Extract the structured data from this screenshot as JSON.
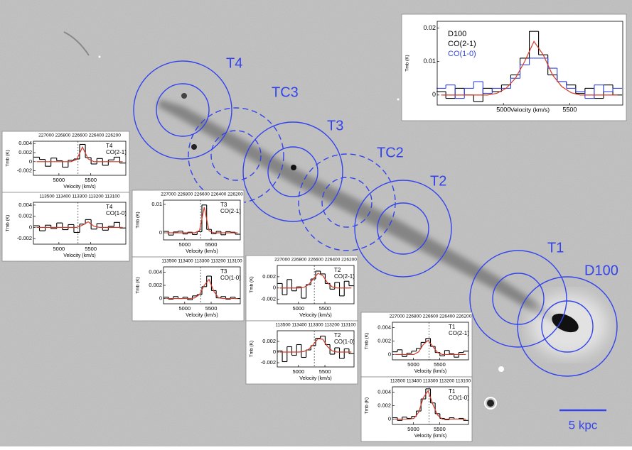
{
  "image": {
    "labels": [
      "T4",
      "TC3",
      "T3",
      "TC2",
      "T2",
      "T1",
      "D100"
    ],
    "scale_bar": "5 kpc"
  },
  "chart_data": [
    {
      "type": "step",
      "title": "D100",
      "x_label": "Velocity (km/s)",
      "y_label": "Tmb (K)",
      "xlim": [
        4500,
        5900
      ],
      "ylim": [
        -0.003,
        0.022
      ],
      "xticks": [
        5000,
        5500
      ],
      "yticks": [
        0,
        0.01,
        0.02
      ],
      "x": [
        4530,
        4600,
        4670,
        4740,
        4810,
        4880,
        4950,
        5020,
        5090,
        5160,
        5230,
        5300,
        5370,
        5440,
        5510,
        5580,
        5650,
        5720,
        5790,
        5860
      ],
      "series": [
        {
          "name": "CO(2-1)",
          "color": "#000000",
          "values": [
            0.001,
            -0.001,
            0.002,
            0,
            -0.002,
            0.002,
            0.001,
            0.003,
            0.006,
            0.011,
            0.019,
            0.012,
            0.006,
            0.004,
            0.003,
            0.0005,
            0.002,
            -0.001,
            0.003,
            0
          ]
        },
        {
          "name": "CO(1-0)",
          "color": "#3344dd",
          "values": [
            0.002,
            0.003,
            -0.001,
            0.002,
            0.004,
            0.0005,
            0.002,
            0.002,
            0.005,
            0.009,
            0.011,
            0.011,
            0.008,
            0.004,
            0.002,
            0.001,
            -0.001,
            0.003,
            0.001,
            0.002
          ]
        },
        {
          "color": "#d43a2a",
          "fit": true,
          "values": [
            0,
            0,
            0,
            0,
            0,
            0,
            0.0005,
            0.002,
            0.005,
            0.01,
            0.016,
            0.012,
            0.006,
            0.0025,
            0.0007,
            0,
            0,
            0,
            0,
            0
          ]
        }
      ]
    },
    {
      "type": "step",
      "title": "T4",
      "top_axis": "227000 226800 226600 226400 226200",
      "x_label": "Velocity (km/s)",
      "y_label": "Tmb (K)",
      "xlim": [
        4600,
        6050
      ],
      "ylim": [
        -0.003,
        0.0045
      ],
      "xticks": [
        5000,
        5500
      ],
      "yticks": [
        -0.002,
        0,
        0.002,
        0.004
      ],
      "vline": 5300,
      "x": [
        4650,
        4740,
        4830,
        4920,
        5010,
        5100,
        5190,
        5280,
        5370,
        5460,
        5550,
        5640,
        5730,
        5820,
        5910,
        6000
      ],
      "series": [
        {
          "name": "CO(2-1)",
          "color": "#000000",
          "values": [
            0.001,
            0.0005,
            -0.001,
            0.0008,
            0.0002,
            -0.0012,
            0.0003,
            0.0006,
            0.0038,
            0.0009,
            -0.0005,
            0.0007,
            -0.0008,
            0.0004,
            0.001,
            -0.0003
          ]
        },
        {
          "color": "#d43a2a",
          "fit": true,
          "values": [
            0,
            0,
            0,
            0,
            0,
            0,
            0,
            0.0005,
            0.0032,
            0.0006,
            0,
            0,
            0,
            0,
            0,
            0
          ]
        }
      ]
    },
    {
      "type": "step",
      "title": "T4",
      "top_axis": "113500 113400 113300 113200 113100",
      "x_label": "Velocity (km/s)",
      "y_label": "Tmb (K)",
      "xlim": [
        4600,
        6050
      ],
      "ylim": [
        -0.003,
        0.0045
      ],
      "xticks": [
        5000,
        5500
      ],
      "yticks": [
        -0.002,
        0,
        0.002,
        0.004
      ],
      "vline": 5300,
      "x": [
        4650,
        4740,
        4830,
        4920,
        5010,
        5100,
        5190,
        5280,
        5370,
        5460,
        5550,
        5640,
        5730,
        5820,
        5910,
        6000
      ],
      "series": [
        {
          "name": "CO(1-0)",
          "color": "#000000",
          "values": [
            0.0003,
            -0.0006,
            0.0004,
            -0.0002,
            0.0008,
            -0.0004,
            0.0005,
            -0.0009,
            0.0006,
            0.0014,
            -0.0003,
            0.0007,
            -0.0005,
            0.0002,
            0.0009,
            -0.0001
          ]
        },
        {
          "color": "#d43a2a",
          "fit": true,
          "values": [
            0,
            0,
            0,
            0,
            0,
            0,
            0,
            0,
            0.0004,
            0.001,
            0.0002,
            0,
            0,
            0,
            0,
            0
          ]
        }
      ]
    },
    {
      "type": "step",
      "title": "T3",
      "top_axis": "227000 226800 226600 226400 226200",
      "x_label": "Velocity (km/s)",
      "y_label": "Tmb (K)",
      "xlim": [
        4600,
        6050
      ],
      "ylim": [
        -0.0025,
        0.0115
      ],
      "xticks": [
        5000,
        5500
      ],
      "yticks": [
        0,
        0.01
      ],
      "vline": 5300,
      "x": [
        4650,
        4740,
        4830,
        4920,
        5010,
        5100,
        5190,
        5280,
        5370,
        5460,
        5550,
        5640,
        5730,
        5820,
        5910,
        6000
      ],
      "series": [
        {
          "name": "CO(2-1)",
          "color": "#000000",
          "values": [
            0.0005,
            -0.0008,
            0.0003,
            0.0006,
            -0.0004,
            0.0002,
            -0.0006,
            0.0004,
            0.0098,
            0.0012,
            -0.0003,
            0.0005,
            -0.0007,
            0.0004,
            0.0002,
            -0.0005
          ]
        },
        {
          "color": "#d43a2a",
          "fit": true,
          "values": [
            0,
            0,
            0,
            0,
            0,
            0,
            0,
            0.0008,
            0.009,
            0.0007,
            0,
            0,
            0,
            0,
            0,
            0
          ]
        }
      ]
    },
    {
      "type": "step",
      "title": "T3",
      "top_axis": "113500 113400 113300 113200 113100",
      "x_label": "Velocity (km/s)",
      "y_label": "Tmb (K)",
      "xlim": [
        4600,
        6050
      ],
      "ylim": [
        -0.0008,
        0.0048
      ],
      "xticks": [
        5000,
        5500
      ],
      "yticks": [
        0,
        0.002,
        0.004
      ],
      "vline": 5300,
      "x": [
        4650,
        4740,
        4830,
        4920,
        5010,
        5100,
        5190,
        5280,
        5370,
        5460,
        5550,
        5640,
        5730,
        5820,
        5910,
        6000
      ],
      "series": [
        {
          "name": "CO(1-0)",
          "color": "#000000",
          "values": [
            0.0002,
            -0.0001,
            0.0003,
            0,
            0.0002,
            -0.0002,
            0.0004,
            0.0006,
            0.0018,
            0.0034,
            0.0012,
            0.0001,
            0.0003,
            -0.0001,
            0.0002,
            0
          ]
        },
        {
          "color": "#d43a2a",
          "fit": true,
          "values": [
            0,
            0,
            0,
            0,
            0,
            0,
            0.0001,
            0.0006,
            0.002,
            0.0029,
            0.0011,
            0.0001,
            0,
            0,
            0,
            0
          ]
        }
      ]
    },
    {
      "type": "step",
      "title": "T2",
      "top_axis": "227000 226800 226600 226400 226200",
      "x_label": "Velocity (km/s)",
      "y_label": "Tmb (K)",
      "xlim": [
        4600,
        6050
      ],
      "ylim": [
        -0.0028,
        0.004
      ],
      "xticks": [
        5000,
        5500
      ],
      "yticks": [
        -0.002,
        0,
        0.002
      ],
      "vline": 5300,
      "x": [
        4650,
        4740,
        4830,
        4920,
        5010,
        5100,
        5190,
        5280,
        5370,
        5460,
        5550,
        5640,
        5730,
        5820,
        5910,
        6000
      ],
      "series": [
        {
          "name": "CO(2-1)",
          "color": "#000000",
          "values": [
            0.0008,
            -0.0012,
            0.0015,
            -0.0005,
            0.0002,
            -0.0018,
            0.0006,
            0.0016,
            0.003,
            0.0025,
            0.0008,
            -0.0002,
            0.001,
            -0.0014,
            0.0012,
            0.0004
          ]
        },
        {
          "color": "#d43a2a",
          "fit": true,
          "values": [
            0,
            0,
            0,
            0,
            0,
            0.0001,
            0.0006,
            0.0016,
            0.0026,
            0.0022,
            0.0009,
            0.0002,
            0,
            0,
            0,
            0
          ]
        }
      ]
    },
    {
      "type": "step",
      "title": "T2",
      "top_axis": "113500 113400 113300 113200 113100",
      "x_label": "Velocity (km/s)",
      "y_label": "Tmb (K)",
      "xlim": [
        4600,
        6050
      ],
      "ylim": [
        -0.0028,
        0.004
      ],
      "xticks": [
        5000,
        5500
      ],
      "yticks": [
        -0.002,
        0,
        0.002
      ],
      "vline": 5300,
      "x": [
        4650,
        4740,
        4830,
        4920,
        5010,
        5100,
        5190,
        5280,
        5370,
        5460,
        5550,
        5640,
        5730,
        5820,
        5910,
        6000
      ],
      "series": [
        {
          "name": "CO(1-0)",
          "color": "#000000",
          "values": [
            0.0002,
            -0.0018,
            0.001,
            -0.0006,
            0.0014,
            -0.001,
            0.0004,
            0.0012,
            0.0026,
            0.003,
            0.0014,
            -0.0004,
            0.0008,
            -0.0012,
            0.0006,
            -0.0003
          ]
        },
        {
          "color": "#d43a2a",
          "fit": true,
          "values": [
            0,
            0,
            0,
            0,
            0,
            0.0001,
            0.0005,
            0.0014,
            0.0025,
            0.0024,
            0.001,
            0.0002,
            0,
            0,
            0,
            0
          ]
        }
      ]
    },
    {
      "type": "step",
      "title": "T1",
      "top_axis": "227000 226800 226600 226400 226200",
      "x_label": "Velocity (km/s)",
      "y_label": "Tmb (K)",
      "xlim": [
        4600,
        6050
      ],
      "ylim": [
        -0.0008,
        0.0048
      ],
      "xticks": [
        5000,
        5500
      ],
      "yticks": [
        0,
        0.002,
        0.004
      ],
      "vline": 5300,
      "x": [
        4650,
        4740,
        4830,
        4920,
        5010,
        5100,
        5190,
        5280,
        5370,
        5460,
        5550,
        5640,
        5730,
        5820,
        5910,
        6000
      ],
      "series": [
        {
          "name": "CO(2-1)",
          "color": "#000000",
          "values": [
            0.0004,
            0.0007,
            -0.0003,
            0.0002,
            0.0005,
            0.0009,
            0.0018,
            0.0024,
            0.0012,
            0.0003,
            -0.0002,
            0.0006,
            0.0001,
            -0.0004,
            0.0003,
            0.0005
          ]
        },
        {
          "color": "#d43a2a",
          "fit": true,
          "values": [
            0,
            0,
            0,
            0,
            0,
            0.0004,
            0.0015,
            0.0021,
            0.0012,
            0.0003,
            0,
            0,
            0,
            0,
            0,
            0
          ]
        }
      ]
    },
    {
      "type": "step",
      "title": "T1",
      "top_axis": "113500 113400 113300 113200 113100",
      "x_label": "Velocity (km/s)",
      "y_label": "Tmb (K)",
      "xlim": [
        4600,
        6050
      ],
      "ylim": [
        -0.0008,
        0.0048
      ],
      "xticks": [
        5000,
        5500
      ],
      "yticks": [
        0,
        0.002,
        0.004
      ],
      "vline": 5300,
      "x": [
        4650,
        4740,
        4830,
        4920,
        5010,
        5100,
        5190,
        5280,
        5370,
        5460,
        5550,
        5640,
        5730,
        5820,
        5910,
        6000
      ],
      "series": [
        {
          "name": "CO(1-0)",
          "color": "#000000",
          "values": [
            0.0002,
            -0.0002,
            0.0003,
            0.0001,
            0.0004,
            0.0012,
            0.003,
            0.0045,
            0.0024,
            0.0008,
            0.0001,
            -0.0001,
            0.0002,
            0,
            0.0001,
            -0.0002
          ]
        },
        {
          "color": "#d43a2a",
          "fit": true,
          "values": [
            0,
            0,
            0,
            0,
            0.0001,
            0.001,
            0.0032,
            0.0042,
            0.0022,
            0.0006,
            0,
            0,
            0,
            0,
            0,
            0
          ]
        }
      ]
    }
  ]
}
